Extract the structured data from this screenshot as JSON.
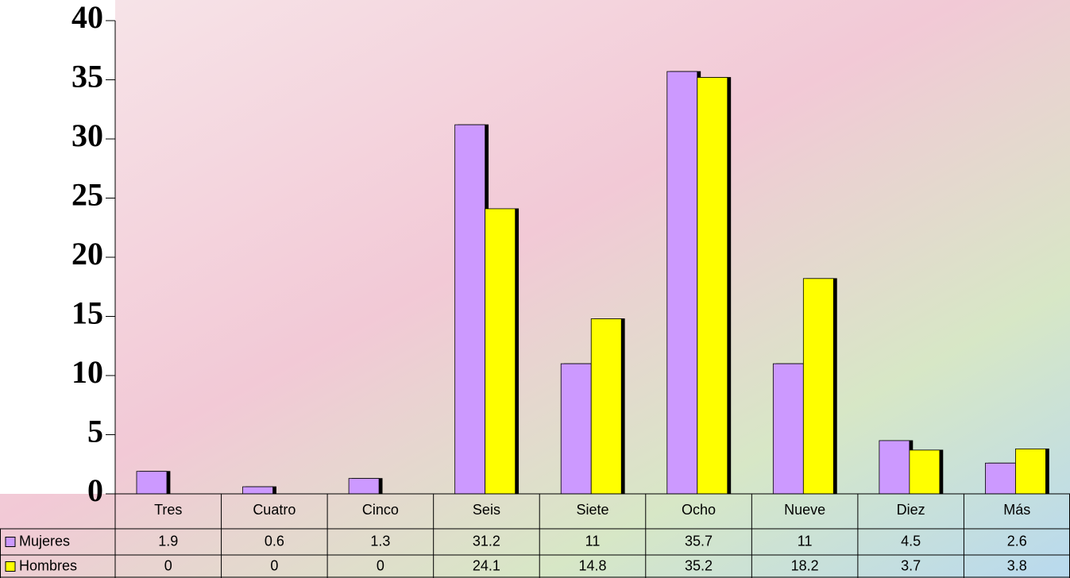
{
  "chart_data": {
    "type": "bar",
    "categories": [
      "Tres",
      "Cuatro",
      "Cinco",
      "Seis",
      "Siete",
      "Ocho",
      "Nueve",
      "Diez",
      "Más"
    ],
    "series": [
      {
        "name": "Mujeres",
        "color": "#cc99ff",
        "values": [
          1.9,
          0.6,
          1.3,
          31.2,
          11,
          35.7,
          11,
          4.5,
          2.6
        ]
      },
      {
        "name": "Hombres",
        "color": "#ffff00",
        "values": [
          0,
          0,
          0,
          24.1,
          14.8,
          35.2,
          18.2,
          3.7,
          3.8
        ]
      }
    ],
    "ylim": [
      0,
      40
    ],
    "yticks": [
      0,
      5,
      10,
      15,
      20,
      25,
      30,
      35,
      40
    ],
    "data_table": true
  }
}
